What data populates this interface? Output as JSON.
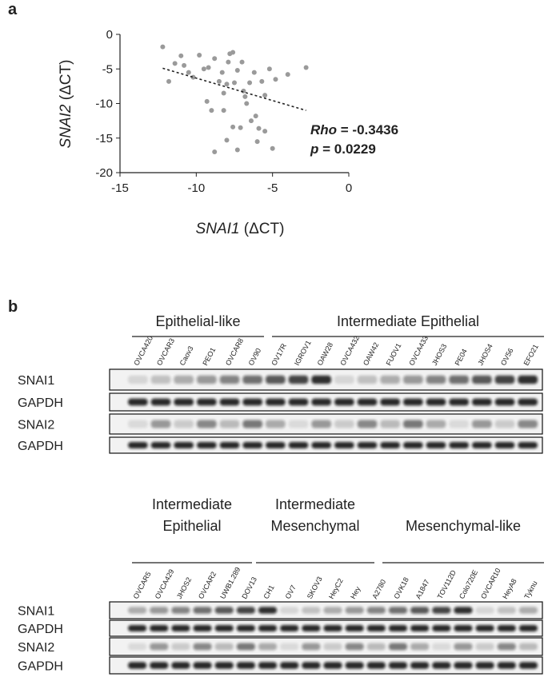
{
  "panel_a_label": "a",
  "chart_data": {
    "type": "scatter",
    "xlabel_gene": "SNAI1",
    "xlabel_unit": "(ΔCT)",
    "ylabel_gene": "SNAI2",
    "ylabel_unit": "(ΔCT)",
    "stat_rho_name": "Rho",
    "stat_rho_value": "= -0.3436",
    "stat_p_name": "p",
    "stat_p_value": "= 0.0229",
    "xlim": [
      -15,
      0
    ],
    "ylim": [
      -20,
      0
    ],
    "xticks": [
      -15,
      -10,
      -5,
      0
    ],
    "yticks": [
      0,
      -5,
      -10,
      -15,
      -20
    ],
    "color": "#9a9a9a",
    "x": [
      -12.2,
      -11.4,
      -11,
      -10.8,
      -10.5,
      -10.2,
      -9.8,
      -9.5,
      -9.2,
      -9,
      -8.8,
      -8.8,
      -8.5,
      -8.3,
      -8.2,
      -8,
      -7.9,
      -7.8,
      -7.6,
      -7.6,
      -7.5,
      -7.3,
      -7.3,
      -7,
      -6.9,
      -6.7,
      -6.5,
      -6.4,
      -6.2,
      -6,
      -5.9,
      -5.7,
      -5.5,
      -5,
      -5.2,
      -4.8,
      -4,
      -2.8,
      -11.8,
      -9.3,
      -8.2,
      -6.8,
      -7.1,
      -6.1,
      -5.5,
      -8
    ],
    "values": [
      -1.8,
      -4.2,
      -3.1,
      -4.5,
      -5.5,
      -6.2,
      -3,
      -5,
      -4.8,
      -11,
      -17,
      -3.5,
      -6.8,
      -5.5,
      -8.5,
      -7.2,
      -4,
      -2.8,
      -2.6,
      -13.4,
      -7,
      -16.7,
      -5.2,
      -4,
      -8.2,
      -10,
      -7,
      -12.5,
      -5.5,
      -15.5,
      -13.6,
      -6.8,
      -8.8,
      -16.5,
      -5,
      -6.5,
      -5.8,
      -4.8,
      -6.8,
      -9.7,
      -11,
      -9,
      -13.5,
      -11.8,
      -14,
      -15.3
    ],
    "trendline": {
      "x": [
        -12.2,
        -2.8
      ],
      "values": [
        -4.9,
        -11
      ]
    }
  },
  "panel_b_label": "b",
  "blots": [
    {
      "groups": [
        {
          "lines": [
            "Epithelial-like"
          ]
        },
        {
          "lines": [
            "Intermediate Epithelial"
          ]
        }
      ],
      "lanes": [
        "OVCA420",
        "OVCAR3",
        "Caov3",
        "PEO1",
        "OVCAR8",
        "OV90",
        "OV17R",
        "IGROV1",
        "OAW28",
        "OVCA432",
        "OAW42",
        "FUOV1",
        "OVCA433",
        "JHOS3",
        "PE04",
        "JHOS4",
        "OV56",
        "EFO21"
      ],
      "rows": [
        "SNAI1",
        "GAPDH",
        "SNAI2",
        "GAPDH"
      ]
    },
    {
      "groups": [
        {
          "lines": [
            "Intermediate",
            "Epithelial"
          ]
        },
        {
          "lines": [
            "Intermediate",
            "Mesenchymal"
          ]
        },
        {
          "lines": [
            "Mesenchymal-like"
          ]
        }
      ],
      "lanes": [
        "OVCAR5",
        "OVCA429",
        "JHOS2",
        "OVCAR2",
        "UWB1.289",
        "DOV13",
        "CH1",
        "OV7",
        "SKOV3",
        "HeyC2",
        "Hey",
        "A2780",
        "OVK18",
        "A1847",
        "TOV112D",
        "Colo720E",
        "OVCAR10",
        "HeyA8",
        "Tyknu"
      ],
      "rows": [
        "SNAI1",
        "GAPDH",
        "SNAI2",
        "GAPDH"
      ]
    }
  ]
}
